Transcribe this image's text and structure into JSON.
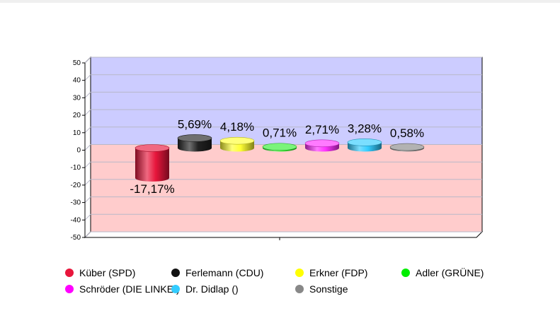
{
  "chart_data": {
    "type": "bar",
    "categories": [
      "Küber (SPD)",
      "Ferlemann (CDU)",
      "Erkner (FDP)",
      "Adler (GRÜNE)",
      "Schröder (DIE LINKE.)",
      "Dr. Didlap ()",
      "Sonstige"
    ],
    "values": [
      -17.17,
      5.69,
      4.18,
      0.71,
      2.71,
      3.28,
      0.58
    ],
    "data_labels": [
      "-17,17%",
      "5,69%",
      "4,18%",
      "0,71%",
      "2,71%",
      "3,28%",
      "0,58%"
    ],
    "colors": [
      "#e8163c",
      "#222222",
      "#ffff33",
      "#33ee33",
      "#ff33ff",
      "#33ccff",
      "#888888"
    ],
    "ylim": [
      -50,
      50
    ],
    "yticks": [
      "50",
      "40",
      "30",
      "20",
      "10",
      "0",
      "-10",
      "-20",
      "-30",
      "-40",
      "-50"
    ],
    "ytick_values": [
      50,
      40,
      30,
      20,
      10,
      0,
      -10,
      -20,
      -30,
      -40,
      -50
    ],
    "grid": true,
    "background_positive": "#ccccff",
    "background_negative": "#ffcccc",
    "legend_position": "bottom"
  },
  "legend": {
    "rows": [
      [
        {
          "label": "Küber (SPD)",
          "color": "#e8163c"
        },
        {
          "label": "Ferlemann (CDU)",
          "color": "#111111"
        },
        {
          "label": "Erkner (FDP)",
          "color": "#ffff00"
        },
        {
          "label": "Adler (GRÜNE)",
          "color": "#00ee00"
        }
      ],
      [
        {
          "label": "Schröder (DIE LINKE.)",
          "color": "#ff00ff"
        },
        {
          "label": "Dr. Didlap ()",
          "color": "#33ccff"
        },
        {
          "label": "Sonstige",
          "color": "#888888"
        }
      ]
    ]
  }
}
